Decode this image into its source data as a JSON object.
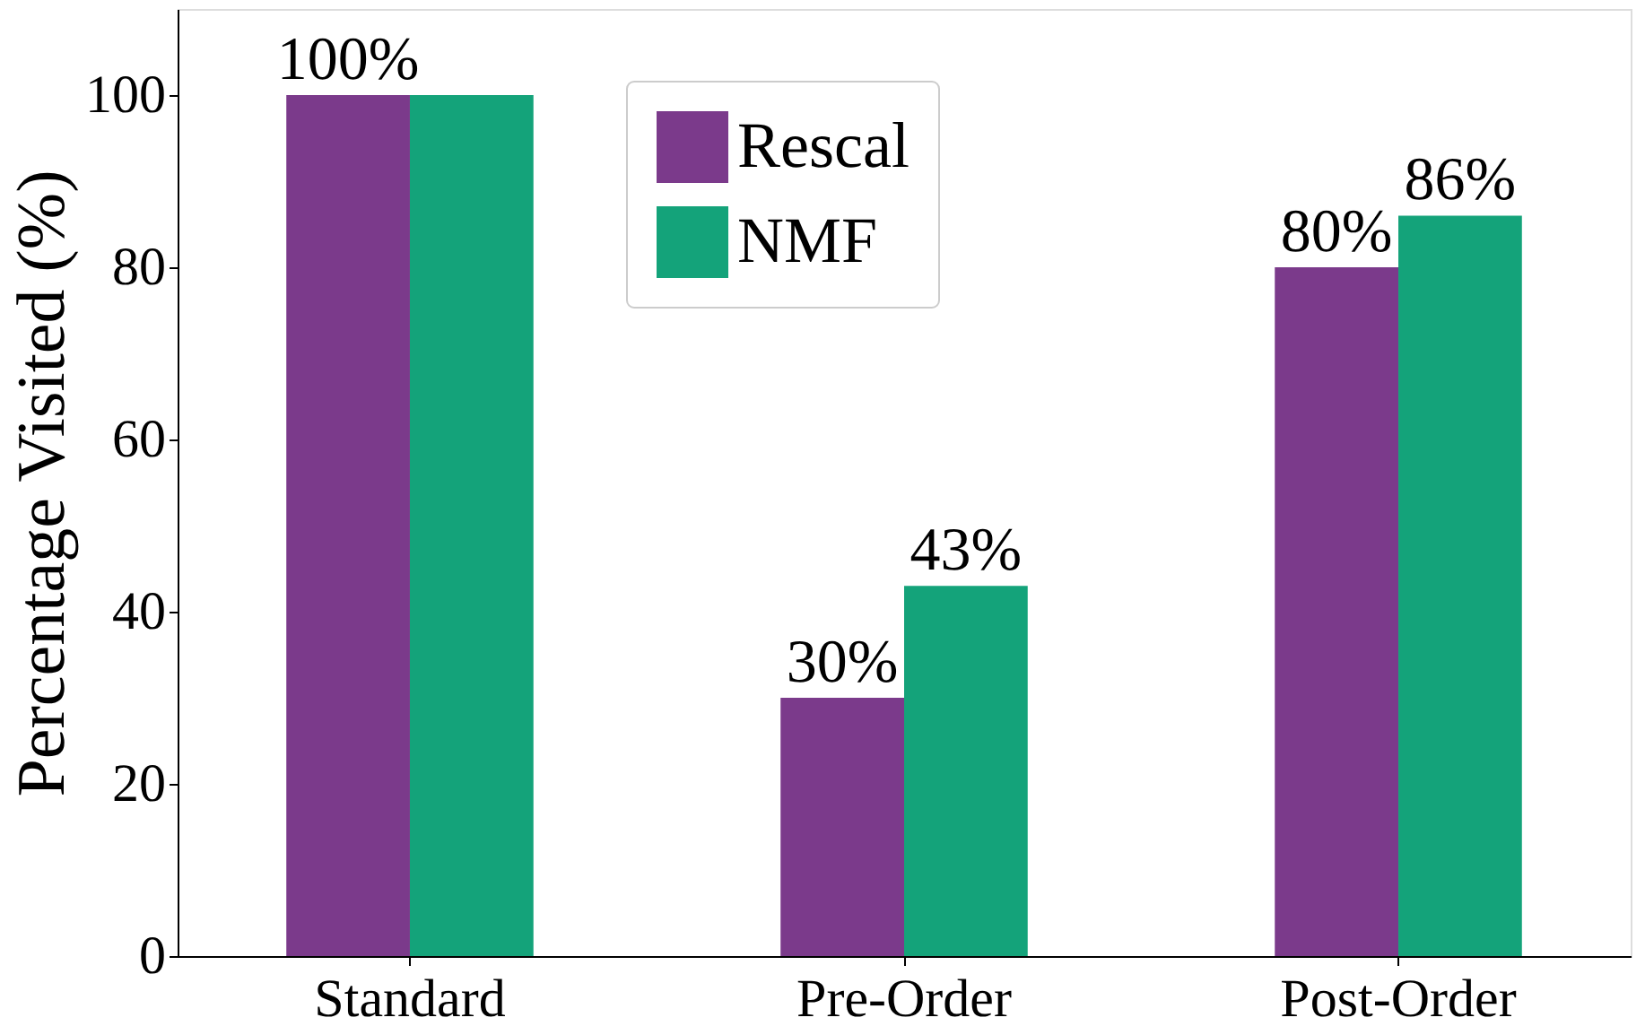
{
  "chart_data": {
    "type": "bar",
    "ylabel": "Percentage Visited (%)",
    "categories": [
      "Standard",
      "Pre-Order",
      "Post-Order"
    ],
    "series": [
      {
        "name": "Rescal",
        "color": "#7b3a8b",
        "values": [
          100,
          30,
          80
        ],
        "value_labels": [
          "100%",
          "30%",
          "80%"
        ]
      },
      {
        "name": "NMF",
        "color": "#14a37a",
        "values": [
          100,
          43,
          86
        ],
        "value_labels": [
          null,
          "43%",
          "86%"
        ]
      }
    ],
    "ylim": [
      0,
      110
    ],
    "yticks": [
      0,
      20,
      40,
      60,
      80,
      100
    ],
    "grid": false,
    "legend": "top"
  }
}
